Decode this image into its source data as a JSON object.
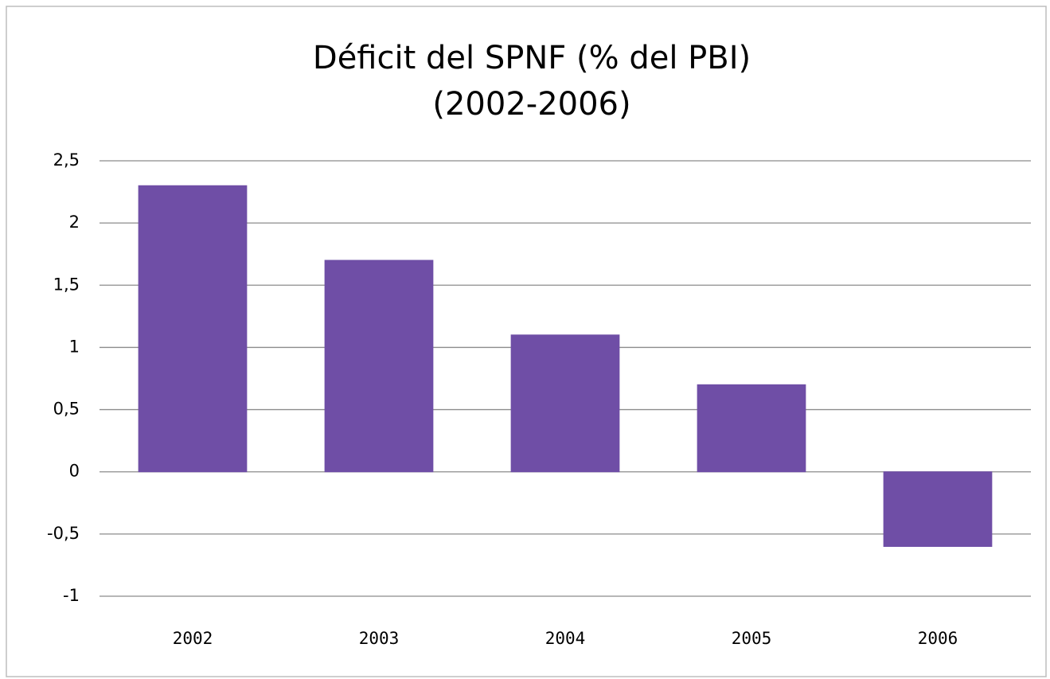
{
  "chart_data": {
    "type": "bar",
    "title": "Déficit del SPNF (% del PBI)",
    "subtitle": "(2002-2006)",
    "categories": [
      "2002",
      "2003",
      "2004",
      "2005",
      "2006"
    ],
    "values": [
      2.3,
      1.7,
      1.1,
      0.7,
      -0.6
    ],
    "color": "#6f4ea6",
    "ylim": [
      -1,
      2.5
    ],
    "yticks": [
      -1,
      {
        "value": -0.5,
        "label": "-0,5"
      },
      0,
      {
        "value": 0.5,
        "label": "0,5"
      },
      1,
      {
        "value": 1.5,
        "label": "1,5"
      },
      2,
      {
        "value": 2.5,
        "label": "2,5"
      }
    ],
    "grid": true
  }
}
